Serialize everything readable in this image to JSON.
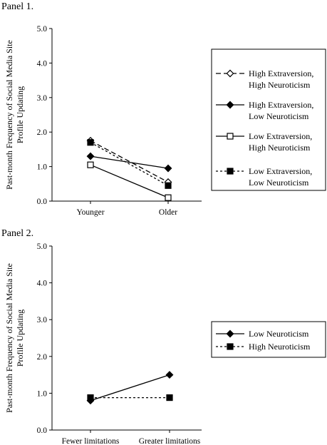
{
  "chart_data": [
    {
      "type": "line",
      "title": "Panel 1.",
      "ylabel": [
        "Past-month Frequency of Social Media Site",
        "Profile Updating"
      ],
      "xlabel": "",
      "categories": [
        "Younger",
        "Older"
      ],
      "yticks": [
        "0.0",
        "1.0",
        "2.0",
        "3.0",
        "4.0",
        "5.0"
      ],
      "ylim": [
        0,
        5
      ],
      "grid": false,
      "legend_position": "right",
      "series": [
        {
          "name": [
            "High Extraversion,",
            "High Neuroticism"
          ],
          "values": [
            1.75,
            0.55
          ],
          "marker": "diamond-open",
          "dash": "dashed"
        },
        {
          "name": [
            "High Extraversion,",
            "Low Neuroticism"
          ],
          "values": [
            1.3,
            0.95
          ],
          "marker": "diamond-filled",
          "dash": "solid"
        },
        {
          "name": [
            "Low Extraversion,",
            "High Neuroticism"
          ],
          "values": [
            1.05,
            0.1
          ],
          "marker": "square-open",
          "dash": "solid"
        },
        {
          "name": [
            "Low Extraversion,",
            "Low Neuroticism"
          ],
          "values": [
            1.7,
            0.45
          ],
          "marker": "square-filled",
          "dash": "dotted"
        }
      ]
    },
    {
      "type": "line",
      "title": "Panel 2.",
      "ylabel": [
        "Past-month Frequency of Social Media Site",
        "Profile Updating"
      ],
      "xlabel": "",
      "categories": [
        "Fewer limitations",
        "Greater limitations"
      ],
      "yticks": [
        "0.0",
        "1.0",
        "2.0",
        "3.0",
        "4.0",
        "5.0"
      ],
      "ylim": [
        0,
        5
      ],
      "grid": false,
      "legend_position": "right",
      "series": [
        {
          "name": [
            "Low Neuroticism"
          ],
          "values": [
            0.8,
            1.5
          ],
          "marker": "diamond-filled",
          "dash": "solid"
        },
        {
          "name": [
            "High Neuroticism"
          ],
          "values": [
            0.88,
            0.88
          ],
          "marker": "square-filled",
          "dash": "dotted"
        }
      ]
    }
  ]
}
